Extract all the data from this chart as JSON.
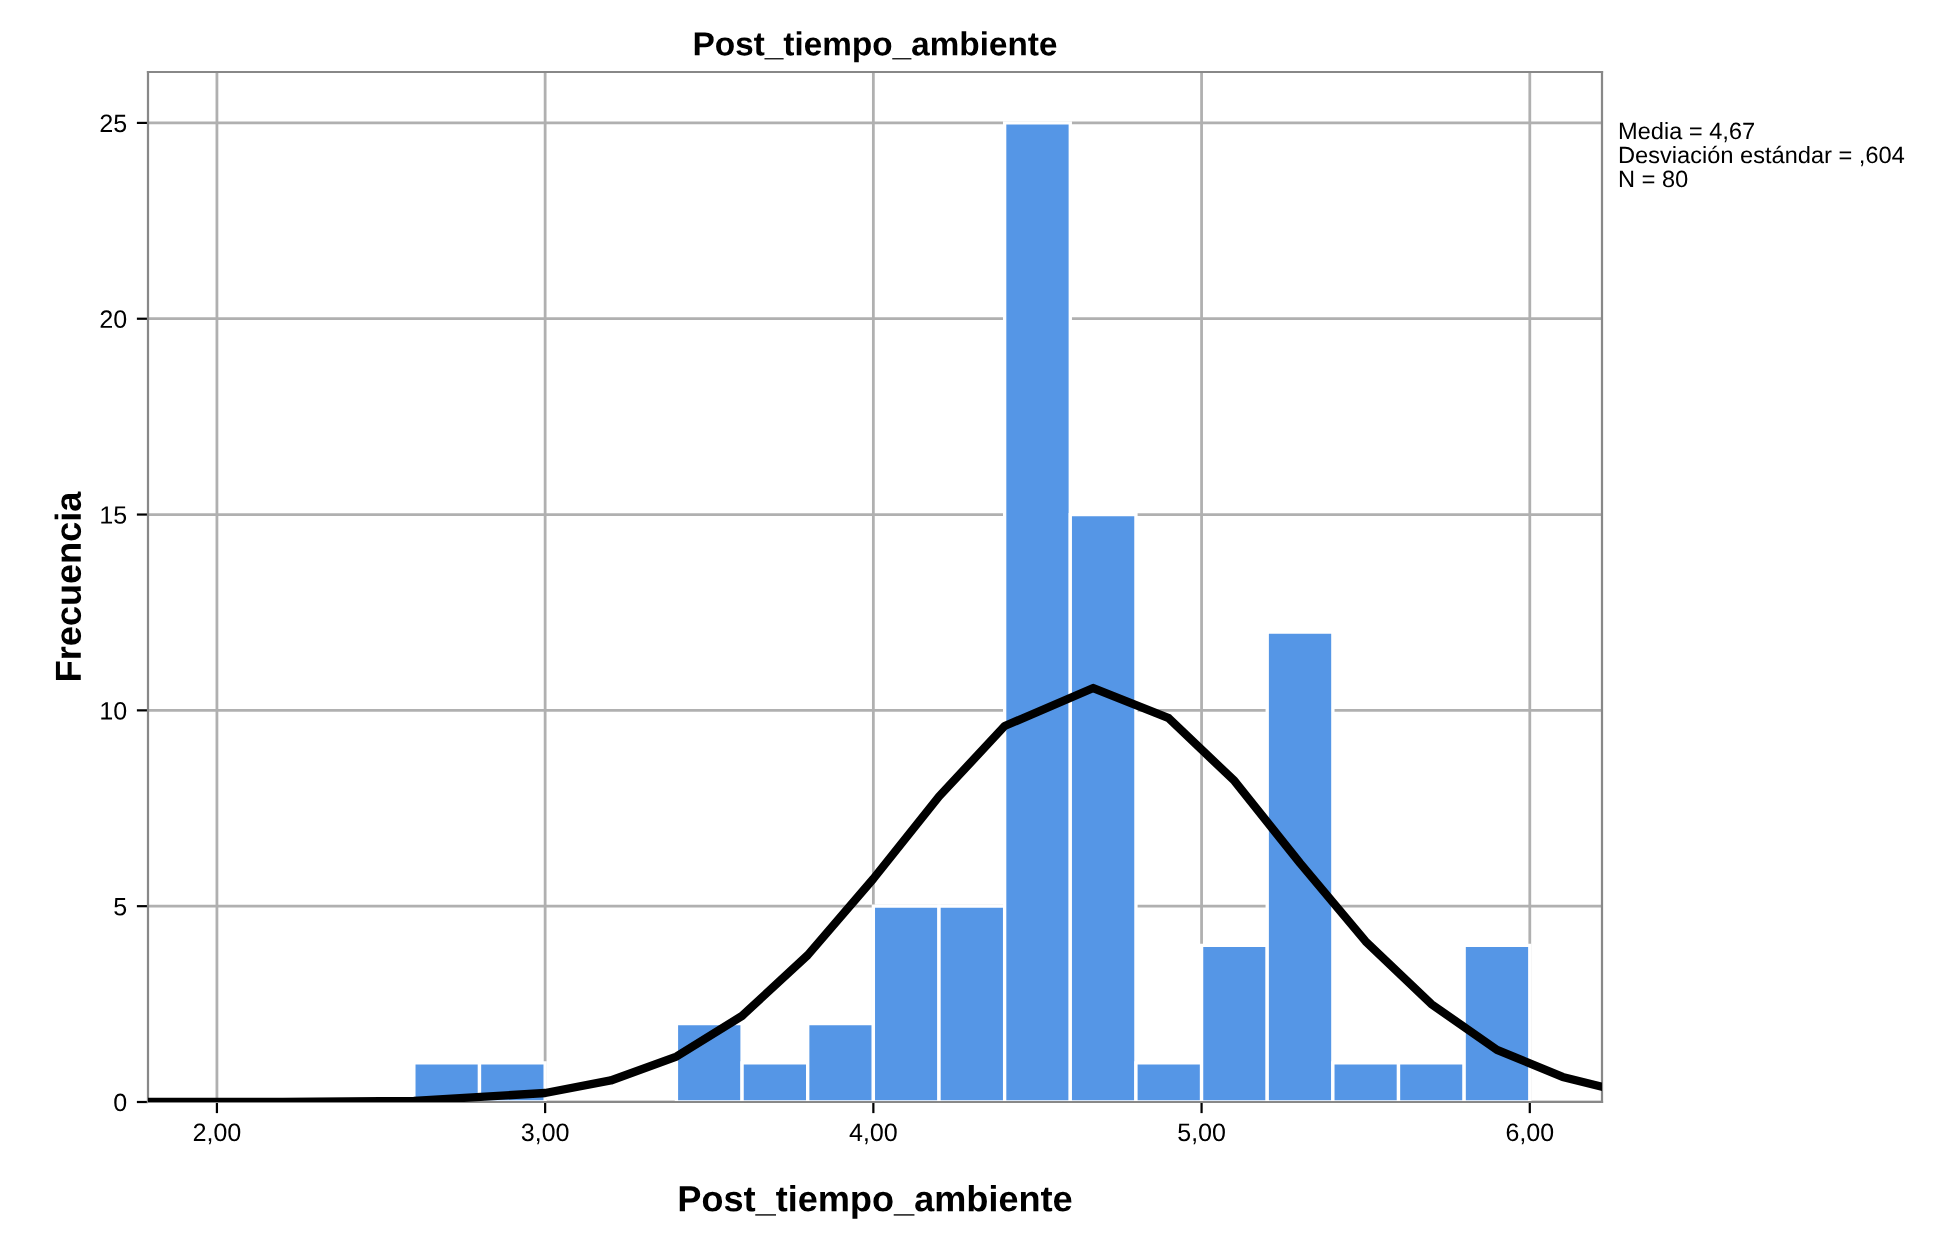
{
  "chart_data": {
    "type": "histogram",
    "title": "Post_tiempo_ambiente",
    "xlabel": "Post_tiempo_ambiente",
    "ylabel": "Frecuencia",
    "bins": [
      2.6,
      2.8,
      3.0,
      3.2,
      3.4,
      3.6,
      3.8,
      4.0,
      4.2,
      4.4,
      4.6,
      4.8,
      5.0,
      5.2,
      5.4,
      5.6,
      5.8,
      6.0
    ],
    "values": [
      1,
      1,
      0,
      0,
      2,
      1,
      2,
      5,
      5,
      25,
      15,
      1,
      4,
      12,
      1,
      1,
      4
    ],
    "color": "#5596e6",
    "series": [
      {
        "type": "line",
        "color": "#000000",
        "x": [
          1.8,
          2.2,
          2.6,
          3.0,
          3.2,
          3.4,
          3.6,
          3.8,
          4.0,
          4.2,
          4.4,
          4.67,
          4.9,
          5.1,
          5.3,
          5.5,
          5.7,
          5.9,
          6.1,
          6.22
        ],
        "values": [
          0,
          0,
          0.03,
          0.23,
          0.55,
          1.16,
          2.2,
          3.75,
          5.7,
          7.8,
          9.6,
          10.57,
          9.8,
          8.2,
          6.1,
          4.1,
          2.5,
          1.33,
          0.64,
          0.39
        ]
      }
    ],
    "xlim": [
      1.79,
      6.22
    ],
    "ylim": [
      0,
      26.3
    ],
    "xticks": [
      {
        "value": 2,
        "label": "2,00"
      },
      {
        "value": 3,
        "label": "3,00"
      },
      {
        "value": 4,
        "label": "4,00"
      },
      {
        "value": 5,
        "label": "5,00"
      },
      {
        "value": 6,
        "label": "6,00"
      }
    ],
    "yticks": [
      0,
      5,
      10,
      15,
      20,
      25
    ],
    "grid": true,
    "annotations": [
      "Media = 4,67",
      "Desviación estándar = ,604",
      "N = 80"
    ]
  }
}
